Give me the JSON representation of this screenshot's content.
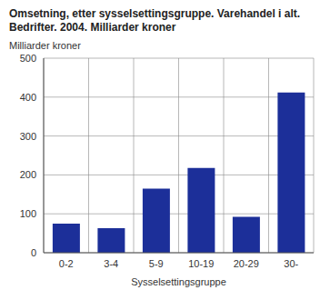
{
  "chart_data": {
    "type": "bar",
    "title": "Omsetning, etter sysselsettingsgruppe. Varehandel i alt. Bedrifter. 2004. Milliarder kroner",
    "y_label": "Milliarder kroner",
    "x_label": "Sysselsettingsgruppe",
    "categories": [
      "0-2",
      "3-4",
      "5-9",
      "10-19",
      "20-29",
      "30-"
    ],
    "values": [
      75,
      63,
      165,
      218,
      92,
      412
    ],
    "color": "#1c2f99",
    "ylim": [
      0,
      500
    ],
    "yticks": [
      0,
      100,
      200,
      300,
      400,
      500
    ],
    "grid": true
  }
}
